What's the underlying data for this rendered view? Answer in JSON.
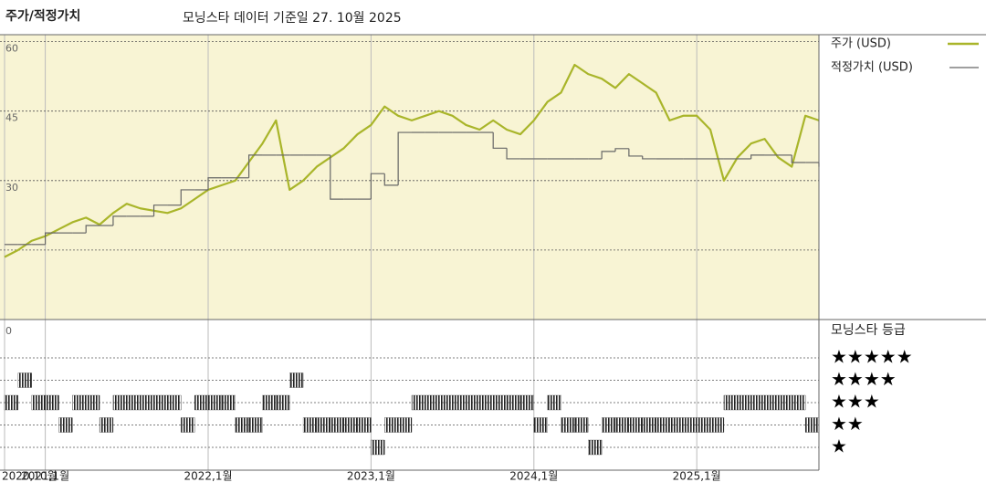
{
  "header": {
    "title": "주가/적정가치",
    "subtitle": "모닝스타 데이터 기준일 27. 10월 2025"
  },
  "chart_data": [
    {
      "type": "line",
      "x": [
        "2020-10",
        "2020-11",
        "2020-12",
        "2021-01",
        "2021-02",
        "2021-03",
        "2021-04",
        "2021-05",
        "2021-06",
        "2021-07",
        "2021-08",
        "2021-09",
        "2021-10",
        "2021-11",
        "2021-12",
        "2022-01",
        "2022-02",
        "2022-03",
        "2022-04",
        "2022-05",
        "2022-06",
        "2022-07",
        "2022-08",
        "2022-09",
        "2022-10",
        "2022-11",
        "2022-12",
        "2023-01",
        "2023-02",
        "2023-03",
        "2023-04",
        "2023-05",
        "2023-06",
        "2023-07",
        "2023-08",
        "2023-09",
        "2023-10",
        "2023-11",
        "2023-12",
        "2024-01",
        "2024-02",
        "2024-03",
        "2024-04",
        "2024-05",
        "2024-06",
        "2024-07",
        "2024-08",
        "2024-09",
        "2024-10",
        "2024-11",
        "2024-12",
        "2025-01",
        "2025-02",
        "2025-03",
        "2025-04",
        "2025-05",
        "2025-06",
        "2025-07",
        "2025-08",
        "2025-09",
        "2025-10"
      ],
      "xlim": [
        "2020-10",
        "2025-10"
      ],
      "xticks": [
        {
          "value": "2020-10",
          "label": "2020,10월"
        },
        {
          "value": "2021-01",
          "label": "2021,1월"
        },
        {
          "value": "2022-01",
          "label": "2022,1월"
        },
        {
          "value": "2023-01",
          "label": "2023,1월"
        },
        {
          "value": "2024-01",
          "label": "2024,1월"
        },
        {
          "value": "2025-01",
          "label": "2025,1월"
        }
      ],
      "ylim": [
        0,
        61.5
      ],
      "yticks": [
        30,
        45,
        60
      ],
      "ygrid": [
        15,
        30,
        45,
        60
      ],
      "background": "#f8f4d4",
      "series": [
        {
          "name": "주가 (USD)",
          "color": "#a9b52a",
          "values": [
            13.5,
            15,
            17,
            18,
            19.5,
            21,
            22,
            20.5,
            23,
            25,
            24,
            23.5,
            23,
            24,
            26,
            28,
            29,
            30,
            34,
            38,
            43,
            28,
            30,
            33,
            35,
            37,
            40,
            42,
            46,
            44,
            43,
            44,
            45,
            44,
            42,
            41,
            43,
            41,
            40,
            43,
            47,
            49,
            55,
            53,
            52,
            50,
            53,
            51,
            49,
            43,
            44,
            44,
            41,
            30,
            35,
            38,
            39,
            35,
            33,
            44,
            43
          ]
        },
        {
          "name": "적정가치 (USD)",
          "color": "#666666",
          "step": true,
          "values": [
            16.2,
            16.2,
            16.2,
            18.7,
            18.7,
            18.7,
            20.3,
            20.3,
            22.3,
            22.3,
            22.3,
            24.7,
            24.7,
            28,
            28,
            30.6,
            30.6,
            30.6,
            35.5,
            35.5,
            35.5,
            35.5,
            35.5,
            35.5,
            26,
            26,
            26,
            31.5,
            29,
            40.4,
            40.4,
            40.4,
            40.4,
            40.4,
            40.4,
            40.4,
            37,
            34.7,
            34.7,
            34.7,
            34.7,
            34.7,
            34.7,
            34.7,
            36.3,
            36.9,
            35.3,
            34.7,
            34.7,
            34.7,
            34.7,
            34.7,
            34.7,
            34.7,
            34.7,
            35.5,
            35.5,
            35.5,
            33.9,
            33.9,
            33
          ]
        }
      ]
    },
    {
      "type": "strip",
      "title": "모닝스타 등급",
      "axis_label": "0",
      "levels": [
        {
          "value": 5,
          "label": "★★★★★"
        },
        {
          "value": 4,
          "label": "★★★★"
        },
        {
          "value": 3,
          "label": "★★★"
        },
        {
          "value": 2,
          "label": "★★"
        },
        {
          "value": 1,
          "label": "★"
        }
      ],
      "color": "#222222",
      "values": [
        3,
        4,
        3,
        3,
        2,
        3,
        3,
        2,
        3,
        3,
        3,
        3,
        3,
        2,
        3,
        3,
        3,
        2,
        2,
        3,
        3,
        4,
        2,
        2,
        2,
        2,
        2,
        1,
        2,
        2,
        3,
        3,
        3,
        3,
        3,
        3,
        3,
        3,
        3,
        2,
        3,
        2,
        2,
        1,
        2,
        2,
        2,
        2,
        2,
        2,
        2,
        2,
        2,
        3,
        3,
        3,
        3,
        3,
        3,
        2,
        2
      ]
    }
  ]
}
